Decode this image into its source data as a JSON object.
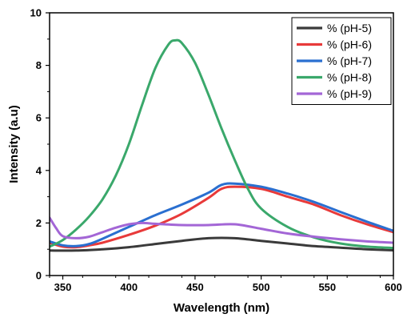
{
  "chart_data": {
    "type": "line",
    "title": "",
    "xlabel": "Wavelength (nm)",
    "ylabel": "Intensity (a.u)",
    "xlim": [
      340,
      600
    ],
    "ylim": [
      0,
      10
    ],
    "xticks": [
      350,
      400,
      450,
      500,
      550,
      600
    ],
    "yticks": [
      0,
      2,
      4,
      6,
      8,
      10
    ],
    "grid": false,
    "legend_position": "top-right",
    "series": [
      {
        "name": "% (pH-5)",
        "color": "#3a3a3a",
        "x": [
          340,
          360,
          380,
          400,
          420,
          440,
          460,
          480,
          500,
          520,
          540,
          560,
          580,
          600
        ],
        "y": [
          0.95,
          0.95,
          1.0,
          1.08,
          1.2,
          1.32,
          1.42,
          1.42,
          1.32,
          1.22,
          1.12,
          1.06,
          1.0,
          0.96
        ]
      },
      {
        "name": "% (pH-6)",
        "color": "#e83a3a",
        "x": [
          340,
          350,
          360,
          370,
          380,
          400,
          420,
          440,
          460,
          470,
          480,
          500,
          520,
          540,
          560,
          580,
          600
        ],
        "y": [
          1.25,
          1.1,
          1.08,
          1.15,
          1.25,
          1.55,
          1.9,
          2.35,
          2.95,
          3.3,
          3.38,
          3.3,
          3.0,
          2.7,
          2.3,
          1.95,
          1.65
        ]
      },
      {
        "name": "% (pH-7)",
        "color": "#2a6fd0",
        "x": [
          340,
          350,
          360,
          370,
          380,
          400,
          420,
          440,
          460,
          470,
          480,
          500,
          520,
          540,
          560,
          580,
          600
        ],
        "y": [
          1.3,
          1.15,
          1.12,
          1.2,
          1.4,
          1.85,
          2.3,
          2.7,
          3.15,
          3.45,
          3.5,
          3.38,
          3.12,
          2.8,
          2.42,
          2.05,
          1.7
        ]
      },
      {
        "name": "% (pH-8)",
        "color": "#3aa86b",
        "x": [
          340,
          350,
          360,
          370,
          380,
          390,
          400,
          410,
          420,
          430,
          435,
          440,
          450,
          460,
          470,
          480,
          490,
          500,
          520,
          540,
          560,
          580,
          600
        ],
        "y": [
          1.1,
          1.35,
          1.75,
          2.25,
          2.9,
          3.8,
          5.0,
          6.5,
          7.9,
          8.8,
          8.95,
          8.85,
          8.1,
          6.9,
          5.6,
          4.4,
          3.3,
          2.55,
          1.85,
          1.45,
          1.22,
          1.1,
          1.05
        ]
      },
      {
        "name": "% (pH-9)",
        "color": "#a366d6",
        "x": [
          340,
          345,
          350,
          360,
          370,
          380,
          390,
          400,
          410,
          420,
          440,
          460,
          480,
          500,
          520,
          540,
          560,
          580,
          600
        ],
        "y": [
          2.2,
          1.8,
          1.5,
          1.42,
          1.48,
          1.65,
          1.82,
          1.95,
          2.0,
          1.97,
          1.92,
          1.92,
          1.95,
          1.78,
          1.6,
          1.48,
          1.38,
          1.3,
          1.25
        ]
      }
    ]
  }
}
